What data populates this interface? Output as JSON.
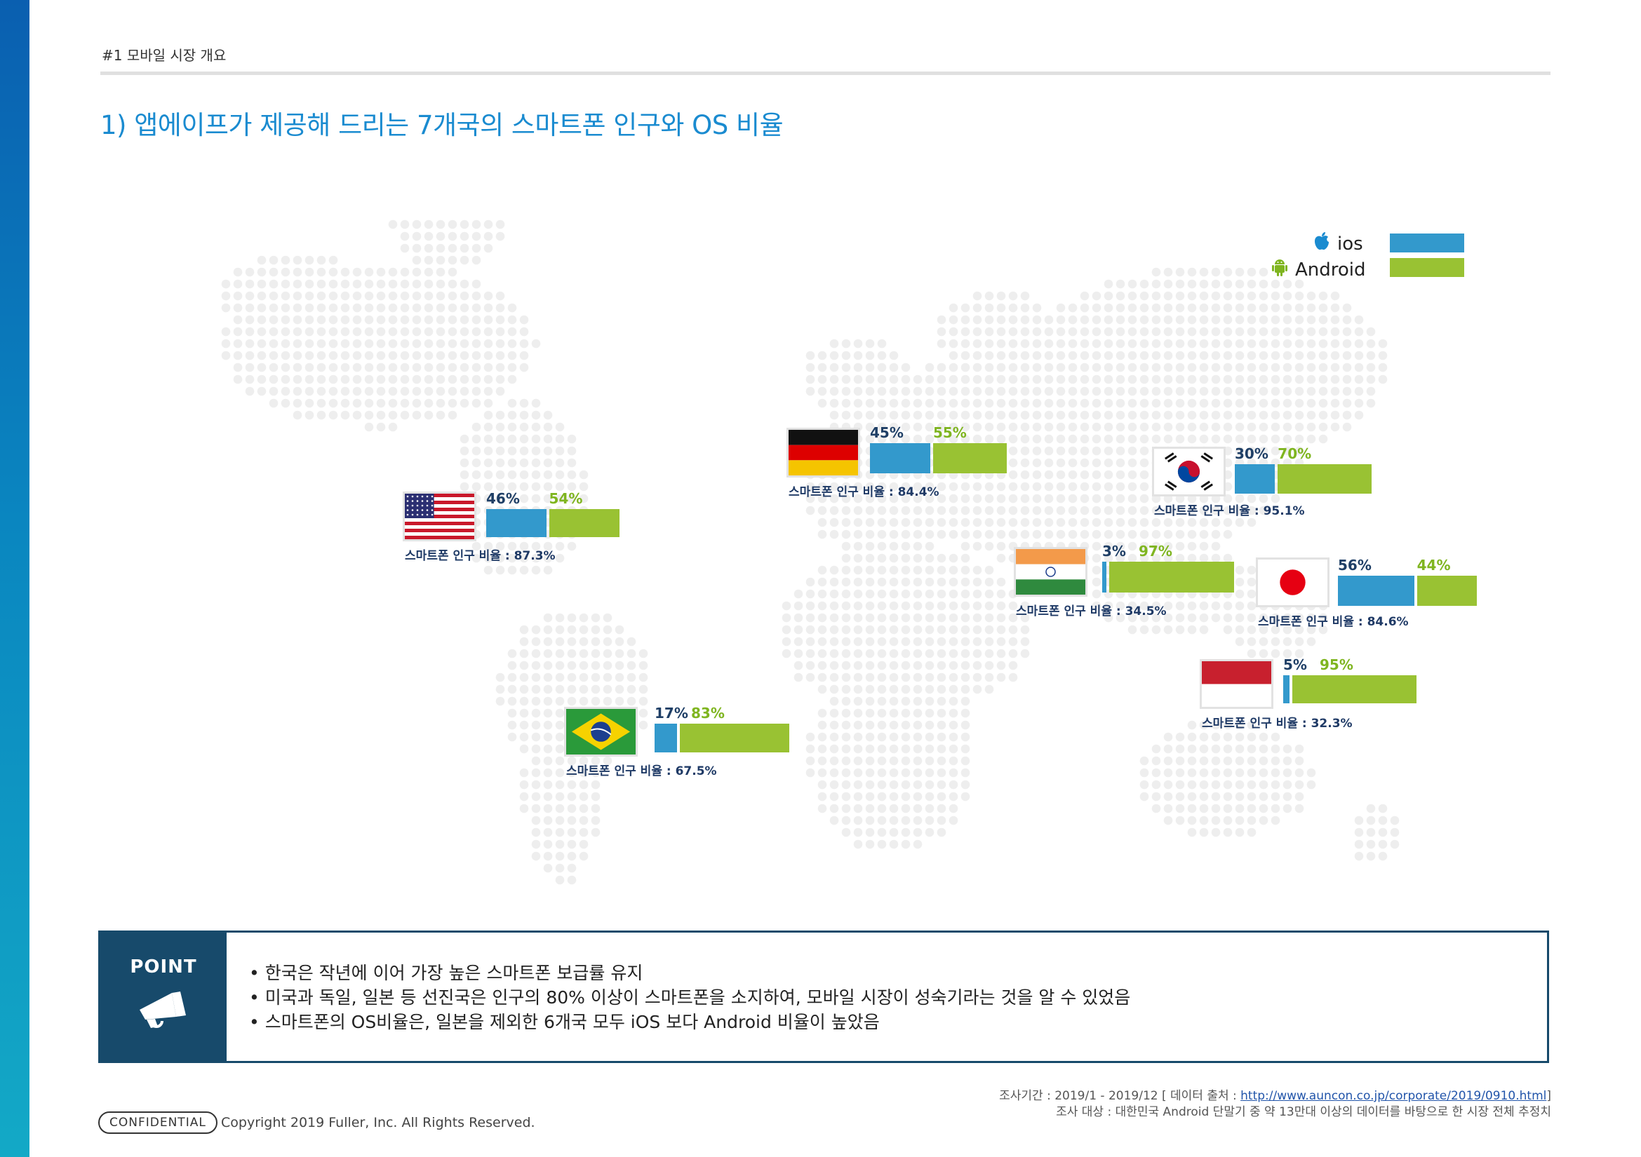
{
  "header": {
    "section_label": "#1 모바일 시장 개요",
    "title": "1) 앱에이프가 제공해 드리는 7개국의 스마트폰 인구와 OS 비율"
  },
  "legend": {
    "ios_label": "ios",
    "android_label": "Android",
    "ios_icon": "apple-icon",
    "android_icon": "android-icon",
    "ios_color": "#3399cc",
    "android_color": "#99c233"
  },
  "chart_data": {
    "type": "bar",
    "stacked": true,
    "title": "1) 앱에이프가 제공해 드리는 7개국의 스마트폰 인구와 OS 비율",
    "series": [
      {
        "name": "ios",
        "color": "#3399cc"
      },
      {
        "name": "Android",
        "color": "#99c233"
      }
    ],
    "countries": [
      {
        "id": "usa",
        "flag": "usa-flag-icon",
        "ios": 46,
        "android": 54,
        "ios_label": "46%",
        "android_label": "54%",
        "penetration": 87.3,
        "caption": "스마트폰 인구 비율 : 87.3%"
      },
      {
        "id": "germany",
        "flag": "germany-flag-icon",
        "ios": 45,
        "android": 55,
        "ios_label": "45%",
        "android_label": "55%",
        "penetration": 84.4,
        "caption": "스마트폰 인구 비율 : 84.4%"
      },
      {
        "id": "korea",
        "flag": "korea-flag-icon",
        "ios": 30,
        "android": 70,
        "ios_label": "30%",
        "android_label": "70%",
        "penetration": 95.1,
        "caption": "스마트폰 인구 비율 : 95.1%"
      },
      {
        "id": "india",
        "flag": "india-flag-icon",
        "ios": 3,
        "android": 97,
        "ios_label": "3%",
        "android_label": "97%",
        "penetration": 34.5,
        "caption": "스마트폰 인구 비율 : 34.5%"
      },
      {
        "id": "japan",
        "flag": "japan-flag-icon",
        "ios": 56,
        "android": 44,
        "ios_label": "56%",
        "android_label": "44%",
        "penetration": 84.6,
        "caption": "스마트폰 인구 비율 : 84.6%"
      },
      {
        "id": "indonesia",
        "flag": "indonesia-flag-icon",
        "ios": 5,
        "android": 95,
        "ios_label": "5%",
        "android_label": "95%",
        "penetration": 32.3,
        "caption": "스마트폰 인구 비율 : 32.3%"
      },
      {
        "id": "brazil",
        "flag": "brazil-flag-icon",
        "ios": 17,
        "android": 83,
        "ios_label": "17%",
        "android_label": "83%",
        "penetration": 67.5,
        "caption": "스마트폰 인구 비율 : 67.5%"
      }
    ]
  },
  "point": {
    "title": "POINT",
    "icon": "megaphone-icon",
    "items": [
      "• 한국은 작년에 이어 가장 높은 스마트폰 보급률 유지",
      "• 미국과 독일, 일본 등 선진국은 인구의 80% 이상이 스마트폰을 소지하여, 모바일 시장이 성숙기라는 것을 알 수 있었음",
      "• 스마트폰의 OS비율은, 일본을 제외한 6개국 모두 iOS 보다 Android 비율이 높았음"
    ]
  },
  "footer": {
    "source_line1_prefix": "조사기간 : 2019/1 -  2019/12 [ 데이터 출처 : ",
    "source_link": "http://www.auncon.co.jp/corporate/2019/0910.html",
    "source_line1_suffix": "]",
    "source_line2": "조사 대상 : 대한민국 Android 단말기 중 약 13만대 이상의 데이터를 바탕으로 한 시장 전체 추정치",
    "confidential": "CONFIDENTIAL",
    "copyright": "Copyright 2019 Fuller, Inc. All Rights Reserved."
  }
}
